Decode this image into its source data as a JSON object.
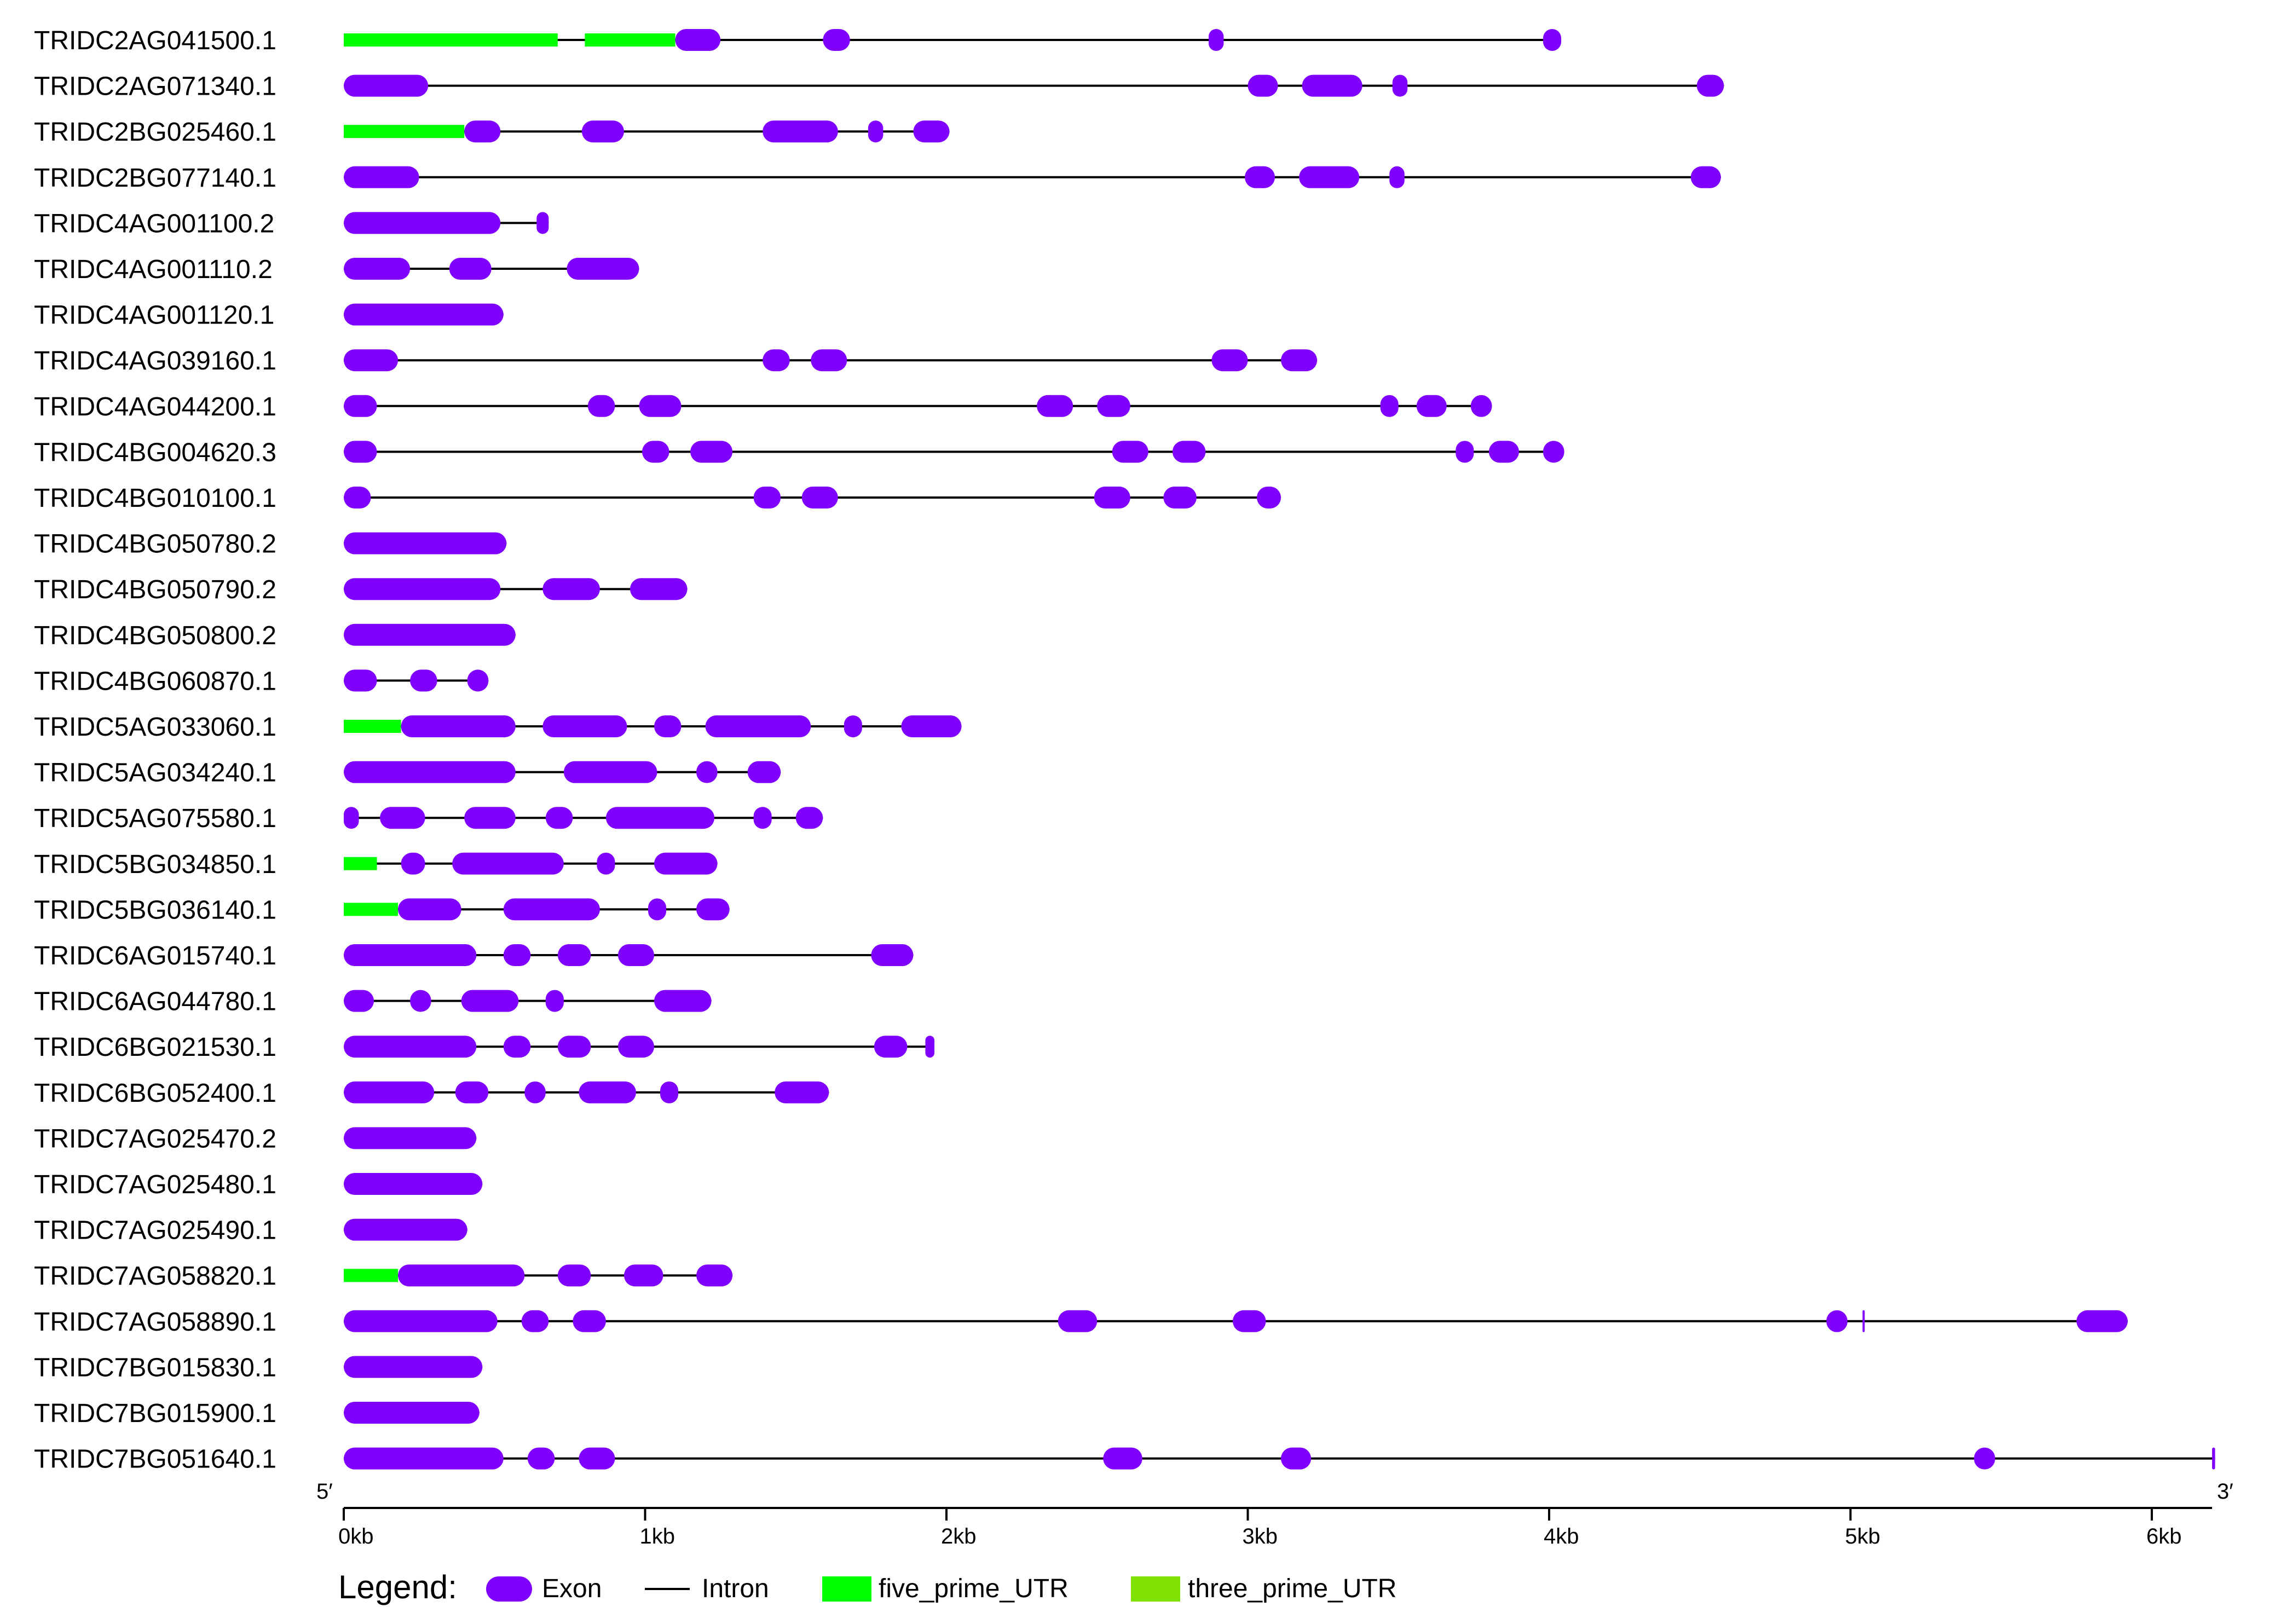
{
  "colors": {
    "exon": "#8000ff",
    "intron": "#000000",
    "five_prime_utr": "#00ff00",
    "three_prime_utr": "#80e000"
  },
  "axis": {
    "left_label": "5′",
    "right_label": "3′",
    "ticks": [
      "0kb",
      "1kb",
      "2kb",
      "3kb",
      "4kb",
      "5kb",
      "6kb"
    ],
    "tick_values_kb": [
      0,
      1,
      2,
      3,
      4,
      5,
      6
    ],
    "range_kb": [
      0,
      6.2
    ]
  },
  "legend": {
    "title": "Legend:",
    "items": [
      {
        "key": "exon",
        "label": "Exon"
      },
      {
        "key": "intron",
        "label": "Intron"
      },
      {
        "key": "five_prime_utr",
        "label": "five_prime_UTR"
      },
      {
        "key": "three_prime_utr",
        "label": "three_prime_UTR"
      }
    ]
  },
  "genes": [
    {
      "id": "TRIDC2AG041500.1",
      "utr5": [
        [
          0,
          0.71
        ],
        [
          0.8,
          1.1
        ]
      ],
      "exons": [
        [
          1.1,
          1.25
        ],
        [
          1.59,
          1.68
        ],
        [
          2.87,
          2.92
        ],
        [
          3.98,
          4.04
        ]
      ]
    },
    {
      "id": "TRIDC2AG071340.1",
      "utr5": [],
      "exons": [
        [
          0,
          0.28
        ],
        [
          3.0,
          3.1
        ],
        [
          3.18,
          3.38
        ],
        [
          3.48,
          3.53
        ],
        [
          4.49,
          4.58
        ]
      ]
    },
    {
      "id": "TRIDC2BG025460.1",
      "utr5": [
        [
          0,
          0.4
        ]
      ],
      "exons": [
        [
          0.4,
          0.52
        ],
        [
          0.79,
          0.93
        ],
        [
          1.39,
          1.64
        ],
        [
          1.74,
          1.79
        ],
        [
          1.89,
          2.01
        ]
      ]
    },
    {
      "id": "TRIDC2BG077140.1",
      "utr5": [],
      "exons": [
        [
          0,
          0.25
        ],
        [
          2.99,
          3.09
        ],
        [
          3.17,
          3.37
        ],
        [
          3.47,
          3.52
        ],
        [
          4.47,
          4.57
        ]
      ]
    },
    {
      "id": "TRIDC4AG001100.2",
      "utr5": [],
      "exons": [
        [
          0,
          0.52
        ],
        [
          0.64,
          0.68
        ]
      ]
    },
    {
      "id": "TRIDC4AG001110.2",
      "utr5": [],
      "exons": [
        [
          0,
          0.22
        ],
        [
          0.35,
          0.49
        ],
        [
          0.74,
          0.98
        ]
      ]
    },
    {
      "id": "TRIDC4AG001120.1",
      "utr5": [],
      "exons": [
        [
          0,
          0.53
        ]
      ]
    },
    {
      "id": "TRIDC4AG039160.1",
      "utr5": [],
      "exons": [
        [
          0,
          0.18
        ],
        [
          1.39,
          1.48
        ],
        [
          1.55,
          1.67
        ],
        [
          2.88,
          3.0
        ],
        [
          3.11,
          3.23
        ]
      ]
    },
    {
      "id": "TRIDC4AG044200.1",
      "utr5": [],
      "exons": [
        [
          0,
          0.11
        ],
        [
          0.81,
          0.9
        ],
        [
          0.98,
          1.12
        ],
        [
          2.3,
          2.42
        ],
        [
          2.5,
          2.61
        ],
        [
          3.44,
          3.5
        ],
        [
          3.56,
          3.66
        ],
        [
          3.74,
          3.81
        ]
      ]
    },
    {
      "id": "TRIDC4BG004620.3",
      "utr5": [],
      "exons": [
        [
          0,
          0.11
        ],
        [
          0.99,
          1.08
        ],
        [
          1.15,
          1.29
        ],
        [
          2.55,
          2.67
        ],
        [
          2.75,
          2.86
        ],
        [
          3.69,
          3.75
        ],
        [
          3.8,
          3.9
        ],
        [
          3.98,
          4.05
        ]
      ]
    },
    {
      "id": "TRIDC4BG010100.1",
      "utr5": [],
      "exons": [
        [
          0,
          0.09
        ],
        [
          1.36,
          1.45
        ],
        [
          1.52,
          1.64
        ],
        [
          2.49,
          2.61
        ],
        [
          2.72,
          2.83
        ],
        [
          3.03,
          3.11
        ]
      ]
    },
    {
      "id": "TRIDC4BG050780.2",
      "utr5": [],
      "exons": [
        [
          0,
          0.54
        ]
      ]
    },
    {
      "id": "TRIDC4BG050790.2",
      "utr5": [],
      "exons": [
        [
          0,
          0.52
        ],
        [
          0.66,
          0.85
        ],
        [
          0.95,
          1.14
        ]
      ]
    },
    {
      "id": "TRIDC4BG050800.2",
      "utr5": [],
      "exons": [
        [
          0,
          0.57
        ]
      ]
    },
    {
      "id": "TRIDC4BG060870.1",
      "utr5": [],
      "exons": [
        [
          0,
          0.11
        ],
        [
          0.22,
          0.31
        ],
        [
          0.41,
          0.48
        ]
      ]
    },
    {
      "id": "TRIDC5AG033060.1",
      "utr5": [
        [
          0,
          0.19
        ]
      ],
      "exons": [
        [
          0.19,
          0.57
        ],
        [
          0.66,
          0.94
        ],
        [
          1.03,
          1.12
        ],
        [
          1.2,
          1.55
        ],
        [
          1.66,
          1.72
        ],
        [
          1.85,
          2.05
        ]
      ]
    },
    {
      "id": "TRIDC5AG034240.1",
      "utr5": [],
      "exons": [
        [
          0,
          0.57
        ],
        [
          0.73,
          1.04
        ],
        [
          1.17,
          1.24
        ],
        [
          1.34,
          1.45
        ]
      ]
    },
    {
      "id": "TRIDC5AG075580.1",
      "utr5": [],
      "exons": [
        [
          0,
          0.05
        ],
        [
          0.12,
          0.27
        ],
        [
          0.4,
          0.57
        ],
        [
          0.67,
          0.76
        ],
        [
          0.87,
          1.23
        ],
        [
          1.36,
          1.42
        ],
        [
          1.5,
          1.59
        ]
      ]
    },
    {
      "id": "TRIDC5BG034850.1",
      "utr5": [
        [
          0,
          0.11
        ]
      ],
      "exons": [
        [
          0.19,
          0.27
        ],
        [
          0.36,
          0.73
        ],
        [
          0.84,
          0.9
        ],
        [
          1.03,
          1.24
        ]
      ]
    },
    {
      "id": "TRIDC5BG036140.1",
      "utr5": [
        [
          0,
          0.18
        ]
      ],
      "exons": [
        [
          0.18,
          0.39
        ],
        [
          0.53,
          0.85
        ],
        [
          1.01,
          1.07
        ],
        [
          1.17,
          1.28
        ]
      ]
    },
    {
      "id": "TRIDC6AG015740.1",
      "utr5": [],
      "exons": [
        [
          0,
          0.44
        ],
        [
          0.53,
          0.62
        ],
        [
          0.71,
          0.82
        ],
        [
          0.91,
          1.03
        ],
        [
          1.75,
          1.89
        ]
      ]
    },
    {
      "id": "TRIDC6AG044780.1",
      "utr5": [],
      "exons": [
        [
          0,
          0.1
        ],
        [
          0.22,
          0.29
        ],
        [
          0.39,
          0.58
        ],
        [
          0.67,
          0.73
        ],
        [
          1.03,
          1.22
        ]
      ]
    },
    {
      "id": "TRIDC6BG021530.1",
      "utr5": [],
      "exons": [
        [
          0,
          0.44
        ],
        [
          0.53,
          0.62
        ],
        [
          0.71,
          0.82
        ],
        [
          0.91,
          1.03
        ],
        [
          1.76,
          1.87
        ],
        [
          1.93,
          1.96
        ]
      ]
    },
    {
      "id": "TRIDC6BG052400.1",
      "utr5": [],
      "exons": [
        [
          0,
          0.3
        ],
        [
          0.37,
          0.48
        ],
        [
          0.6,
          0.67
        ],
        [
          0.78,
          0.97
        ],
        [
          1.05,
          1.11
        ],
        [
          1.43,
          1.61
        ]
      ]
    },
    {
      "id": "TRIDC7AG025470.2",
      "utr5": [],
      "exons": [
        [
          0,
          0.44
        ]
      ]
    },
    {
      "id": "TRIDC7AG025480.1",
      "utr5": [],
      "exons": [
        [
          0,
          0.46
        ]
      ]
    },
    {
      "id": "TRIDC7AG025490.1",
      "utr5": [],
      "exons": [
        [
          0,
          0.41
        ]
      ]
    },
    {
      "id": "TRIDC7AG058820.1",
      "utr5": [
        [
          0,
          0.18
        ]
      ],
      "exons": [
        [
          0.18,
          0.6
        ],
        [
          0.71,
          0.82
        ],
        [
          0.93,
          1.06
        ],
        [
          1.17,
          1.29
        ]
      ]
    },
    {
      "id": "TRIDC7AG058890.1",
      "utr5": [],
      "exons": [
        [
          0,
          0.51
        ],
        [
          0.59,
          0.68
        ],
        [
          0.76,
          0.87
        ],
        [
          2.37,
          2.5
        ],
        [
          2.95,
          3.06
        ],
        [
          4.92,
          4.99
        ],
        [
          5.04,
          5.045
        ],
        [
          5.75,
          5.92
        ]
      ]
    },
    {
      "id": "TRIDC7BG015830.1",
      "utr5": [],
      "exons": [
        [
          0,
          0.46
        ]
      ]
    },
    {
      "id": "TRIDC7BG015900.1",
      "utr5": [],
      "exons": [
        [
          0,
          0.45
        ]
      ]
    },
    {
      "id": "TRIDC7BG051640.1",
      "utr5": [],
      "exons": [
        [
          0,
          0.53
        ],
        [
          0.61,
          0.7
        ],
        [
          0.78,
          0.9
        ],
        [
          2.52,
          2.65
        ],
        [
          3.11,
          3.21
        ],
        [
          5.41,
          5.48
        ],
        [
          6.2,
          6.21
        ]
      ]
    }
  ]
}
